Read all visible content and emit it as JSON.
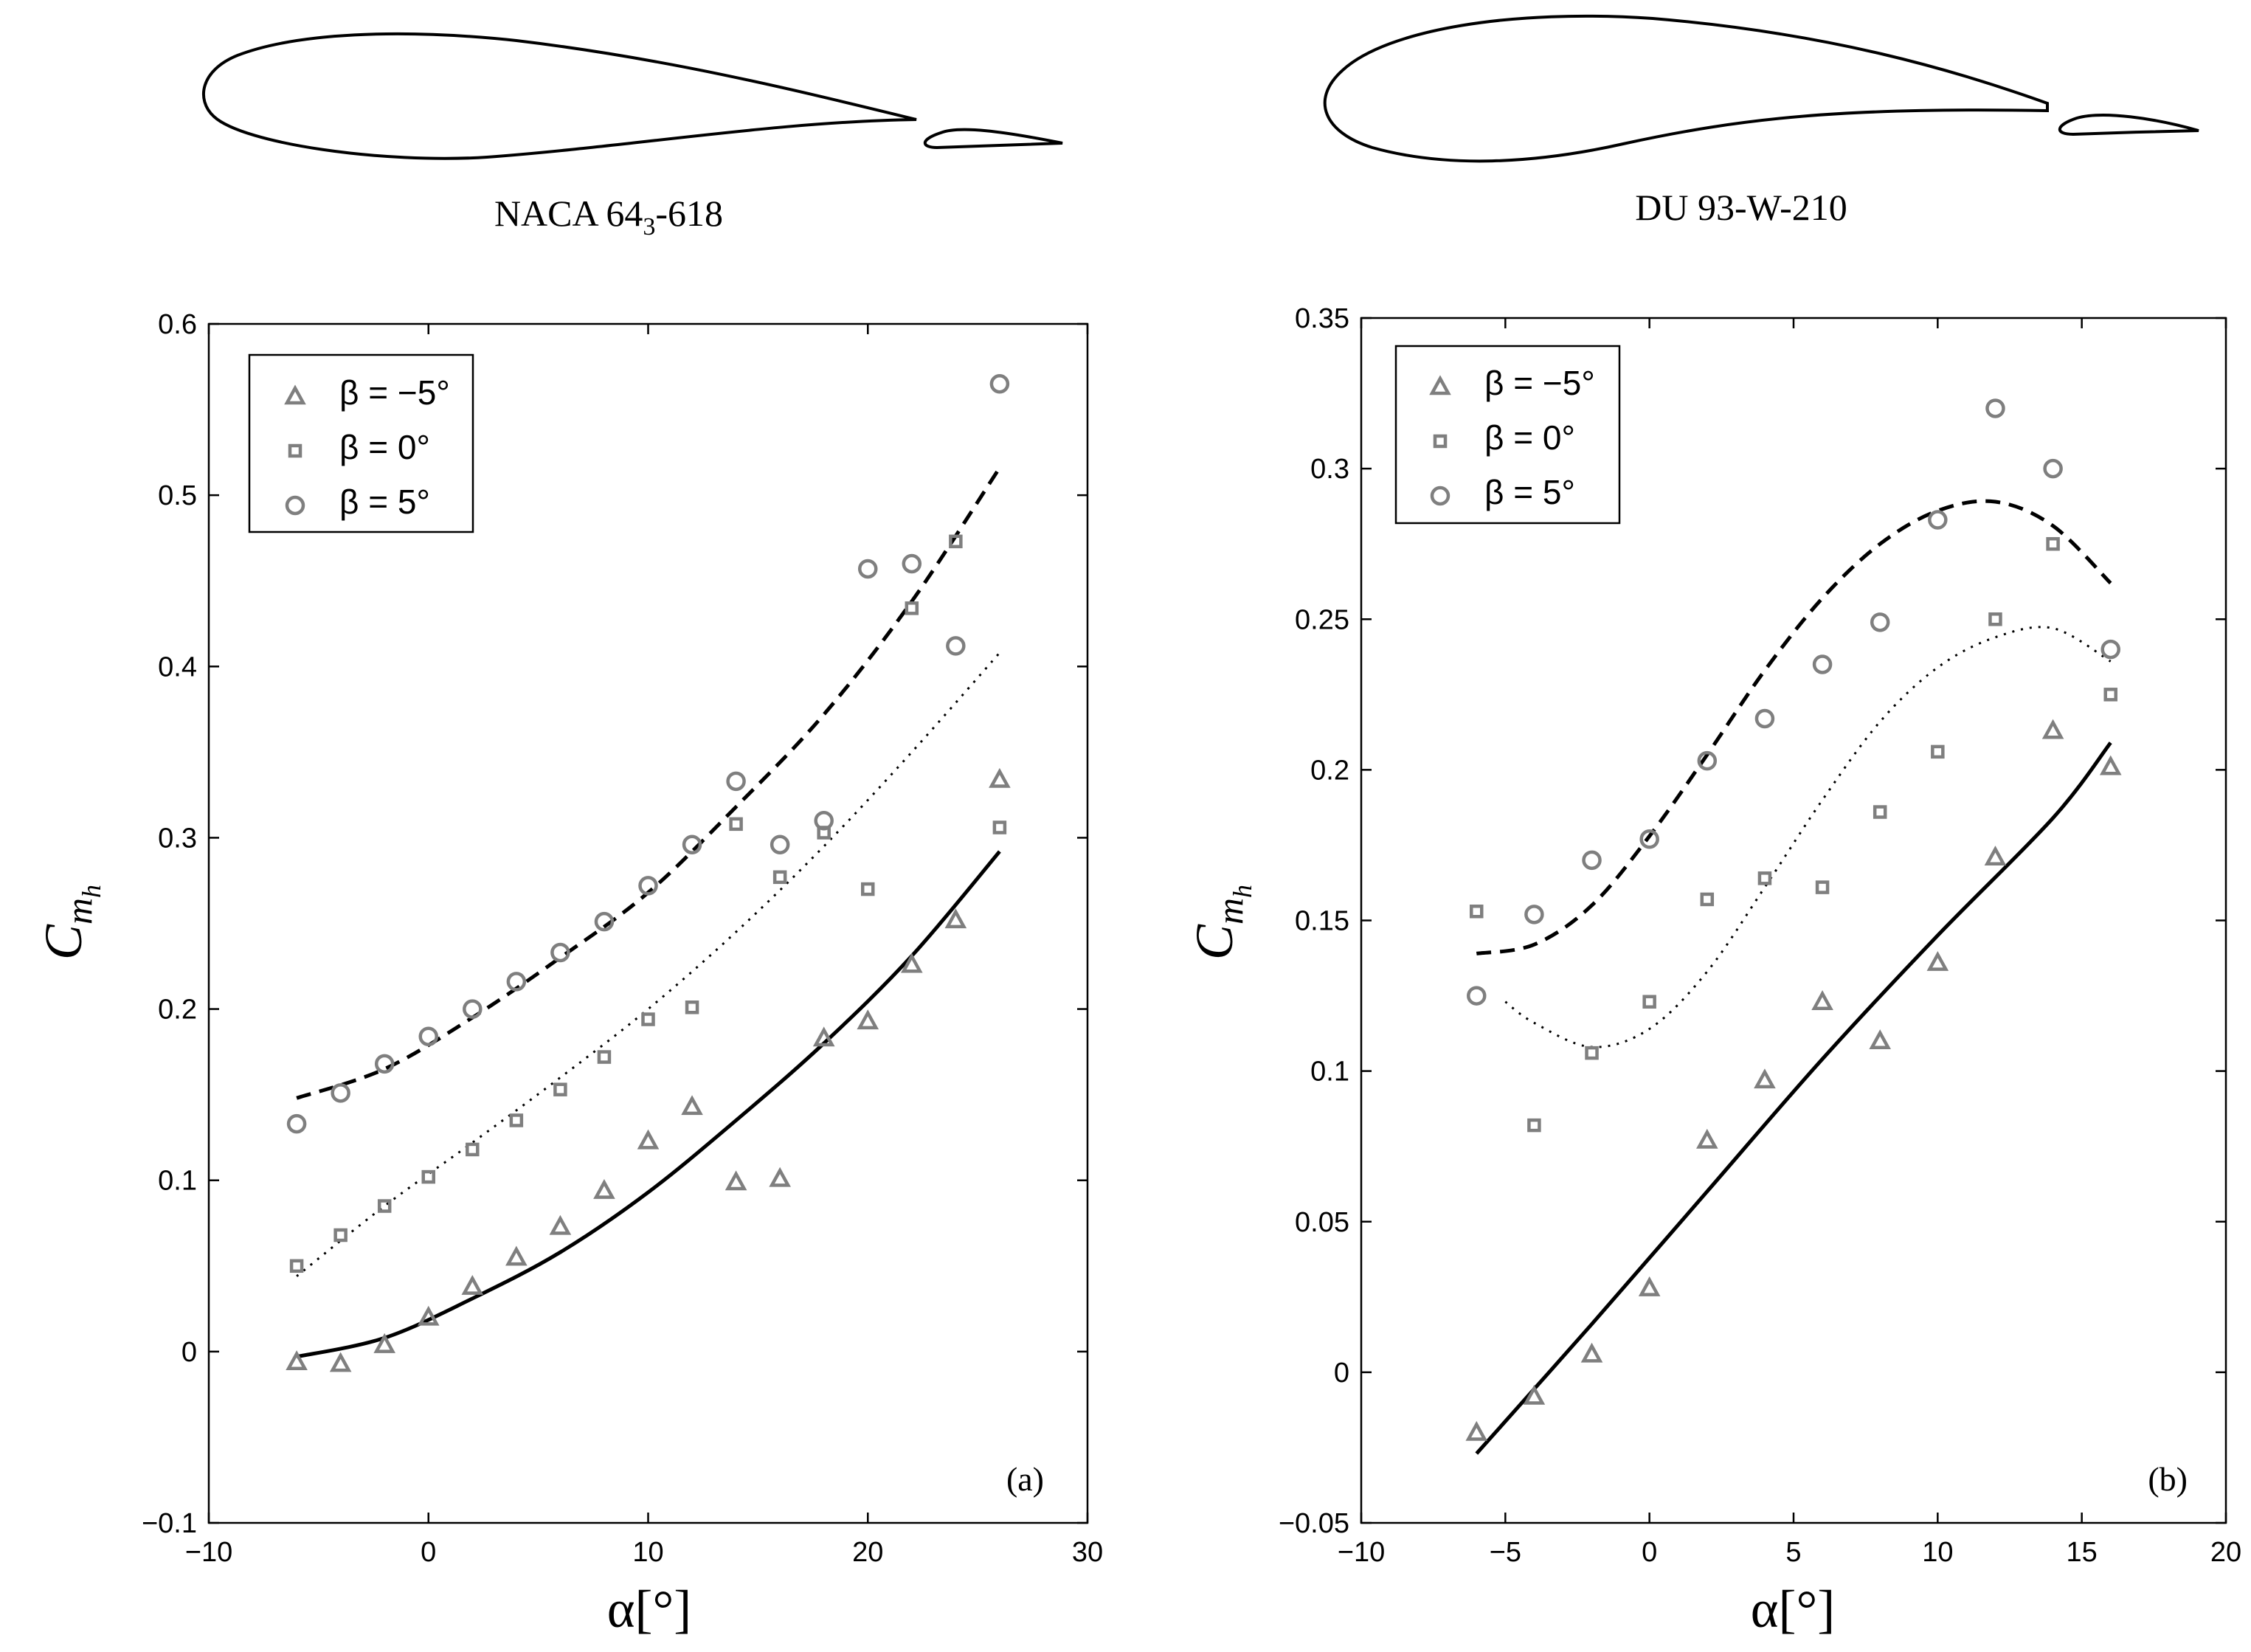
{
  "figure": {
    "airfoil_names": [
      {
        "base": "NACA 64",
        "sub": "3",
        "rest": "-618"
      },
      {
        "base": "DU 93-W-210",
        "sub": "",
        "rest": ""
      }
    ]
  },
  "chart_data": [
    {
      "type": "scatter",
      "panel_label": "(a)",
      "xlabel": "α[°]",
      "ylabel": "C",
      "ylabel_sub": "m",
      "ylabel_subsub": "h",
      "xlim": [
        -10,
        30
      ],
      "ylim": [
        -0.1,
        0.6
      ],
      "xticks": [
        -10,
        0,
        10,
        20,
        30
      ],
      "xtick_labels": [
        "−10",
        "0",
        "10",
        "20",
        "30"
      ],
      "yticks": [
        -0.1,
        0,
        0.1,
        0.2,
        0.3,
        0.4,
        0.5,
        0.6
      ],
      "ytick_labels": [
        "−0.1",
        "0",
        "0.1",
        "0.2",
        "0.3",
        "0.4",
        "0.5",
        "0.6"
      ],
      "legend": {
        "position": "top-left",
        "entries": [
          "β = −5°",
          "β = 0°",
          "β = 5°"
        ]
      },
      "series": [
        {
          "name": "β = −5°",
          "marker": "triangle",
          "points": [
            [
              -6,
              -0.006
            ],
            [
              -4,
              -0.007
            ],
            [
              -2,
              0.004
            ],
            [
              0,
              0.02
            ],
            [
              2,
              0.038
            ],
            [
              4,
              0.055
            ],
            [
              6,
              0.073
            ],
            [
              8,
              0.094
            ],
            [
              10,
              0.123
            ],
            [
              12,
              0.143
            ],
            [
              14,
              0.099
            ],
            [
              16,
              0.101
            ],
            [
              18,
              0.183
            ],
            [
              20,
              0.193
            ],
            [
              22,
              0.226
            ],
            [
              24,
              0.252
            ],
            [
              26,
              0.334
            ]
          ]
        },
        {
          "name": "β = 0°",
          "marker": "square",
          "points": [
            [
              -6,
              0.05
            ],
            [
              -4,
              0.068
            ],
            [
              -2,
              0.085
            ],
            [
              0,
              0.102
            ],
            [
              2,
              0.118
            ],
            [
              4,
              0.135
            ],
            [
              6,
              0.153
            ],
            [
              8,
              0.172
            ],
            [
              10,
              0.194
            ],
            [
              12,
              0.201
            ],
            [
              14,
              0.308
            ],
            [
              16,
              0.277
            ],
            [
              18,
              0.303
            ],
            [
              20,
              0.27
            ],
            [
              22,
              0.434
            ],
            [
              24,
              0.473
            ],
            [
              26,
              0.306
            ]
          ]
        },
        {
          "name": "β = 5°",
          "marker": "circle",
          "points": [
            [
              -6,
              0.133
            ],
            [
              -4,
              0.151
            ],
            [
              -2,
              0.168
            ],
            [
              0,
              0.184
            ],
            [
              2,
              0.2
            ],
            [
              4,
              0.216
            ],
            [
              6,
              0.233
            ],
            [
              8,
              0.251
            ],
            [
              10,
              0.272
            ],
            [
              12,
              0.296
            ],
            [
              14,
              0.333
            ],
            [
              16,
              0.296
            ],
            [
              18,
              0.31
            ],
            [
              20,
              0.457
            ],
            [
              22,
              0.46
            ],
            [
              24,
              0.412
            ],
            [
              26,
              0.565
            ]
          ]
        }
      ],
      "fit_lines": [
        {
          "name": "β = −5° fit",
          "style": "solid",
          "points": [
            [
              -6,
              -0.003
            ],
            [
              -2,
              0.008
            ],
            [
              2,
              0.031
            ],
            [
              6,
              0.058
            ],
            [
              10,
              0.093
            ],
            [
              14,
              0.135
            ],
            [
              18,
              0.18
            ],
            [
              22,
              0.231
            ],
            [
              26,
              0.292
            ]
          ]
        },
        {
          "name": "β = 0° fit",
          "style": "dotted",
          "points": [
            [
              -6,
              0.044
            ],
            [
              -2,
              0.085
            ],
            [
              2,
              0.122
            ],
            [
              6,
              0.16
            ],
            [
              10,
              0.2
            ],
            [
              14,
              0.245
            ],
            [
              18,
              0.295
            ],
            [
              22,
              0.35
            ],
            [
              26,
              0.408
            ]
          ]
        },
        {
          "name": "β = 5° fit",
          "style": "dashed",
          "points": [
            [
              -6,
              0.148
            ],
            [
              -2,
              0.165
            ],
            [
              2,
              0.195
            ],
            [
              6,
              0.23
            ],
            [
              10,
              0.268
            ],
            [
              14,
              0.318
            ],
            [
              18,
              0.372
            ],
            [
              22,
              0.438
            ],
            [
              26,
              0.516
            ]
          ]
        }
      ]
    },
    {
      "type": "scatter",
      "panel_label": "(b)",
      "xlabel": "α[°]",
      "ylabel": "C",
      "ylabel_sub": "m",
      "ylabel_subsub": "h",
      "xlim": [
        -10,
        20
      ],
      "ylim": [
        -0.05,
        0.35
      ],
      "xticks": [
        -10,
        -5,
        0,
        5,
        10,
        15,
        20
      ],
      "xtick_labels": [
        "−10",
        "−5",
        "0",
        "5",
        "10",
        "15",
        "20"
      ],
      "yticks": [
        -0.05,
        0,
        0.05,
        0.1,
        0.15,
        0.2,
        0.25,
        0.3,
        0.35
      ],
      "ytick_labels": [
        "−0.05",
        "0",
        "0.05",
        "0.1",
        "0.15",
        "0.2",
        "0.25",
        "0.3",
        "0.35"
      ],
      "legend": {
        "position": "top-left",
        "entries": [
          "β = −5°",
          "β = 0°",
          "β = 5°"
        ]
      },
      "series": [
        {
          "name": "β = −5°",
          "marker": "triangle",
          "points": [
            [
              -6,
              -0.02
            ],
            [
              -4,
              -0.008
            ],
            [
              -2,
              0.006
            ],
            [
              0,
              0.028
            ],
            [
              2,
              0.077
            ],
            [
              4,
              0.097
            ],
            [
              6,
              0.123
            ],
            [
              8,
              0.11
            ],
            [
              10,
              0.136
            ],
            [
              12,
              0.171
            ],
            [
              14,
              0.213
            ],
            [
              16,
              0.201
            ]
          ]
        },
        {
          "name": "β = 0°",
          "marker": "square",
          "points": [
            [
              -6,
              0.153
            ],
            [
              -4,
              0.082
            ],
            [
              -2,
              0.106
            ],
            [
              0,
              0.123
            ],
            [
              2,
              0.157
            ],
            [
              4,
              0.164
            ],
            [
              6,
              0.161
            ],
            [
              8,
              0.186
            ],
            [
              10,
              0.206
            ],
            [
              12,
              0.25
            ],
            [
              14,
              0.275
            ],
            [
              16,
              0.225
            ]
          ]
        },
        {
          "name": "β = 5°",
          "marker": "circle",
          "points": [
            [
              -6,
              0.125
            ],
            [
              -4,
              0.152
            ],
            [
              -2,
              0.17
            ],
            [
              0,
              0.177
            ],
            [
              2,
              0.203
            ],
            [
              4,
              0.217
            ],
            [
              6,
              0.235
            ],
            [
              8,
              0.249
            ],
            [
              10,
              0.283
            ],
            [
              12,
              0.32
            ],
            [
              14,
              0.3
            ],
            [
              16,
              0.24
            ]
          ]
        }
      ],
      "fit_lines": [
        {
          "name": "β = −5° fit",
          "style": "solid",
          "points": [
            [
              -6,
              -0.027
            ],
            [
              -2,
              0.016
            ],
            [
              2,
              0.06
            ],
            [
              6,
              0.104
            ],
            [
              10,
              0.145
            ],
            [
              14,
              0.184
            ],
            [
              16,
              0.209
            ]
          ]
        },
        {
          "name": "β = 0° fit",
          "style": "dotted",
          "points": [
            [
              -5,
              0.123
            ],
            [
              -4,
              0.116
            ],
            [
              -2,
              0.108
            ],
            [
              0,
              0.114
            ],
            [
              2,
              0.133
            ],
            [
              4,
              0.161
            ],
            [
              6,
              0.19
            ],
            [
              8,
              0.216
            ],
            [
              10,
              0.234
            ],
            [
              12,
              0.244
            ],
            [
              14,
              0.247
            ],
            [
              16,
              0.236
            ]
          ]
        },
        {
          "name": "β = 5° fit",
          "style": "dashed",
          "points": [
            [
              -6,
              0.139
            ],
            [
              -4,
              0.142
            ],
            [
              -2,
              0.155
            ],
            [
              0,
              0.178
            ],
            [
              2,
              0.205
            ],
            [
              4,
              0.233
            ],
            [
              6,
              0.257
            ],
            [
              8,
              0.275
            ],
            [
              10,
              0.286
            ],
            [
              12,
              0.289
            ],
            [
              14,
              0.281
            ],
            [
              16,
              0.262
            ]
          ]
        }
      ]
    }
  ]
}
